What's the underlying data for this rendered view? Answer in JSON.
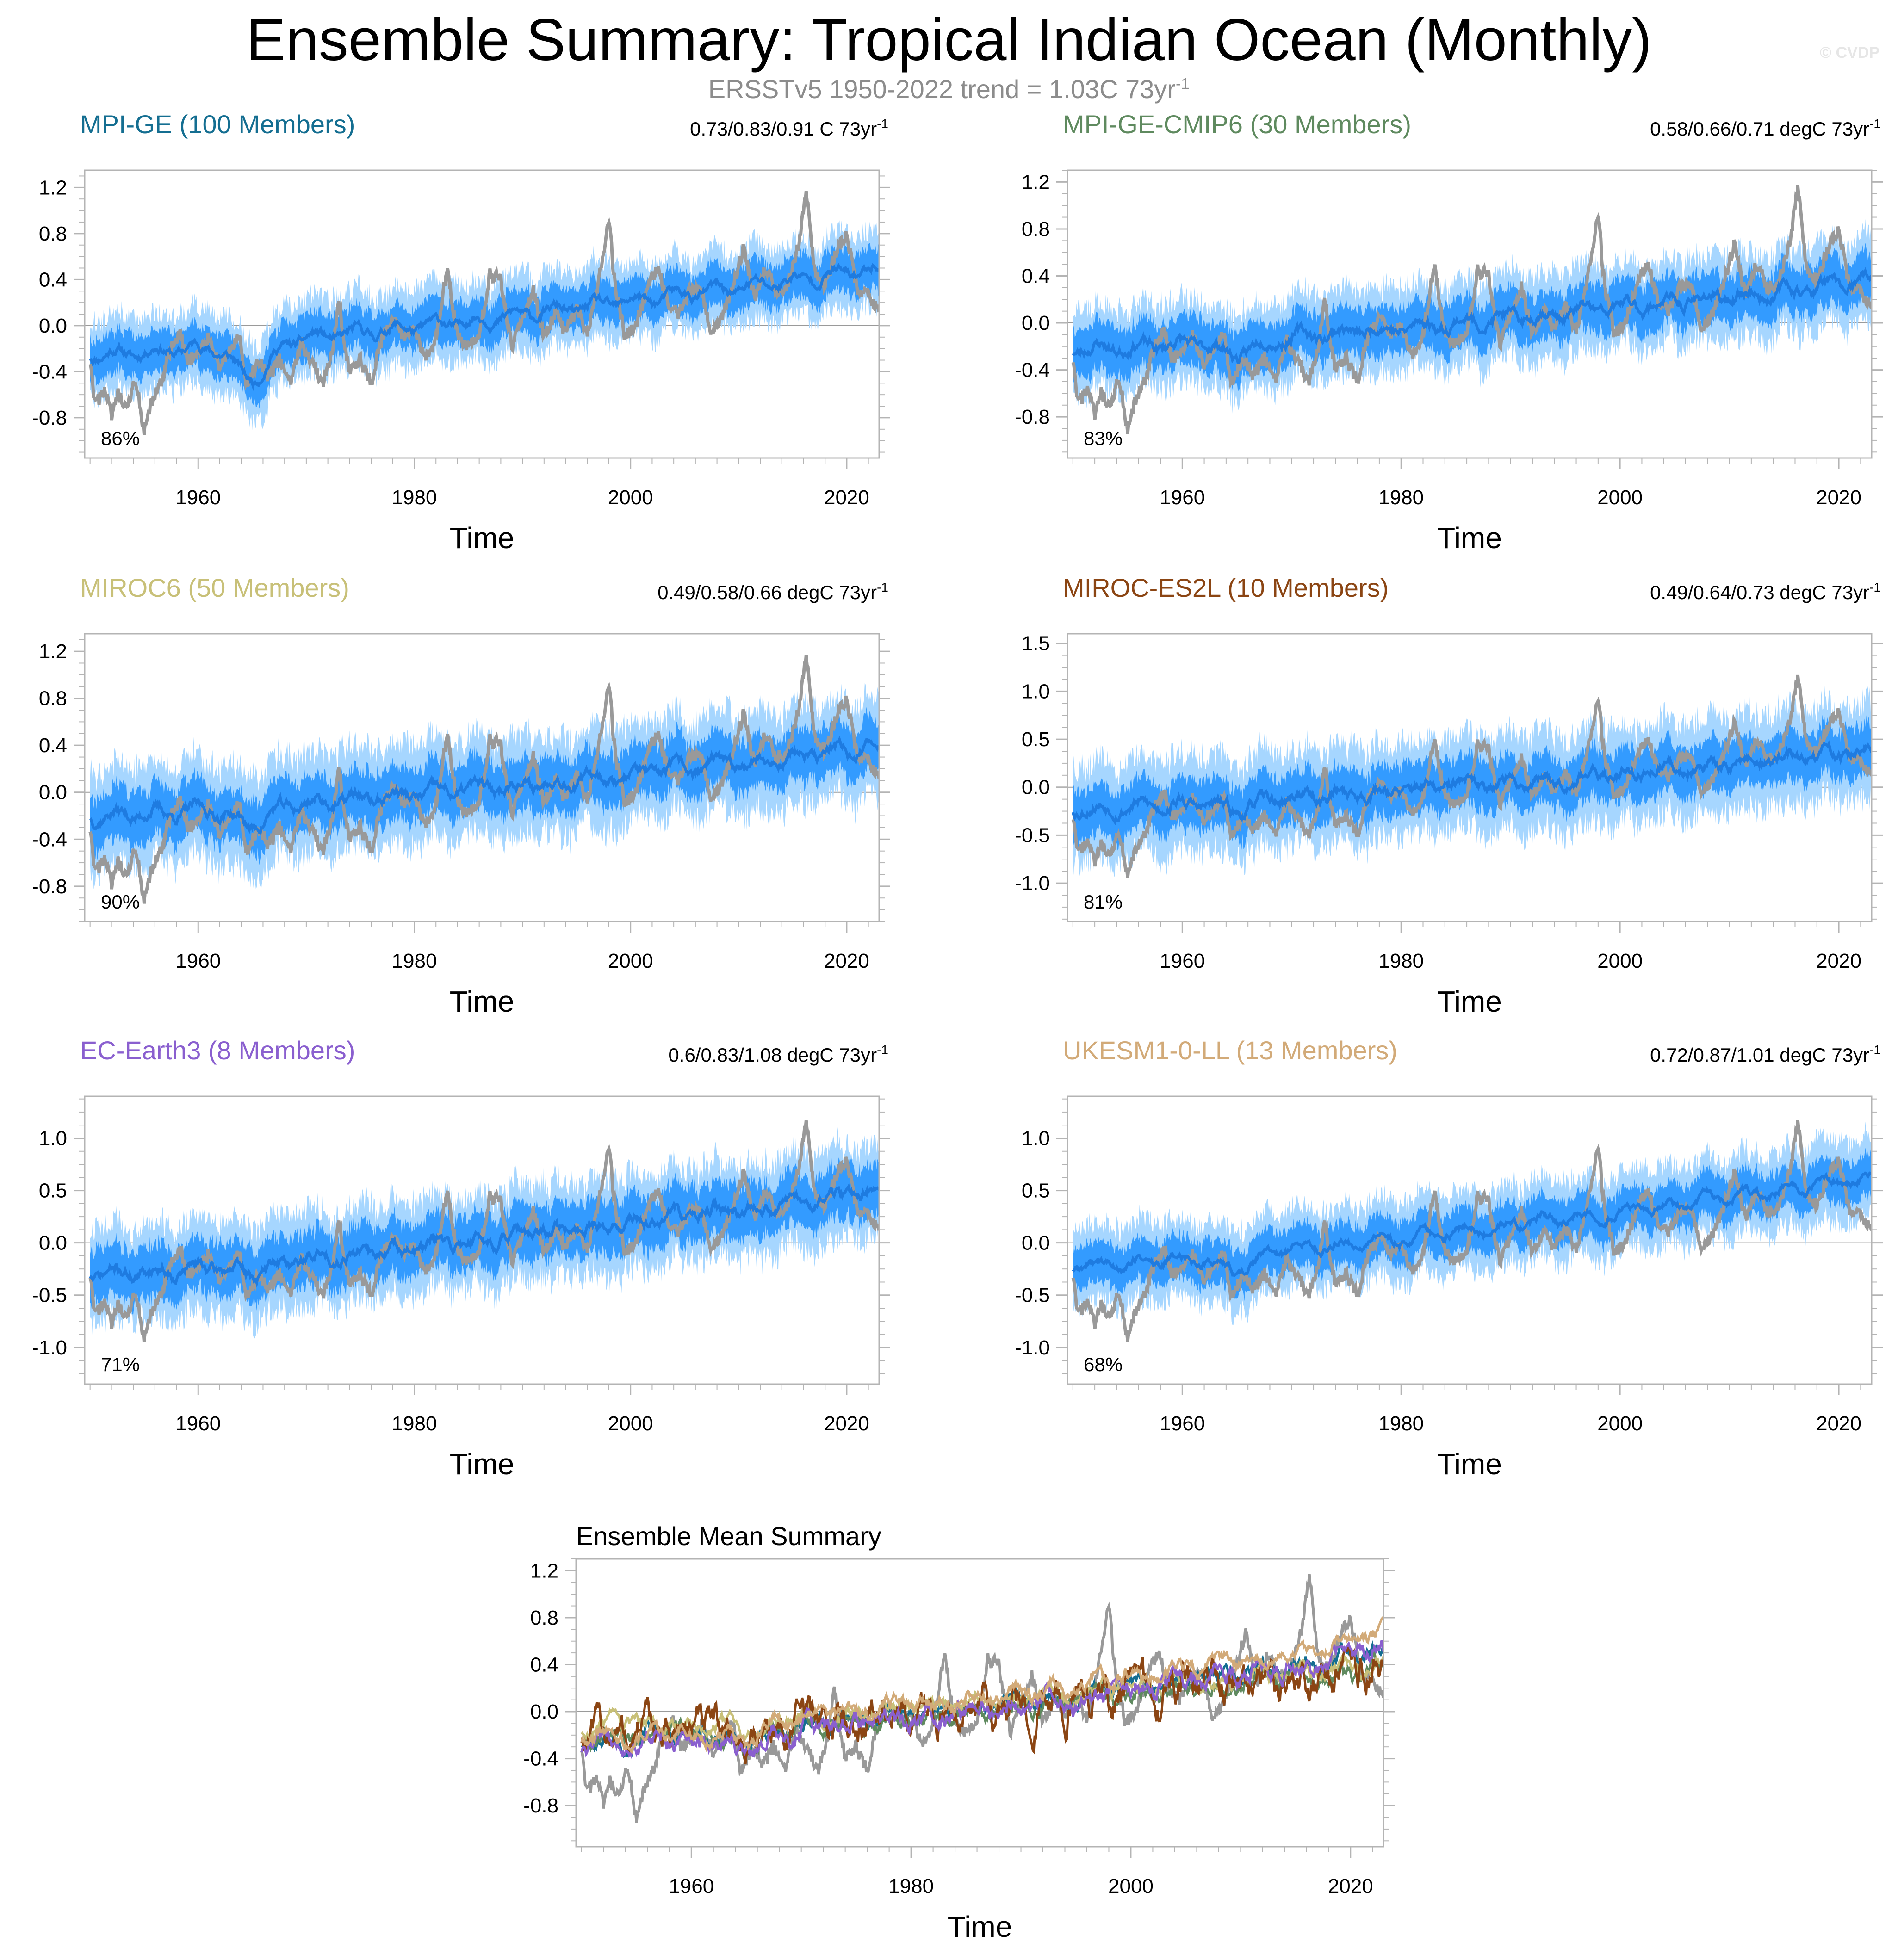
{
  "figure": {
    "title": "Ensemble Summary: Tropical Indian Ocean (Monthly)",
    "subtitle_text": "ERSSTv5 1950-2022 trend = 1.03C 73yr",
    "subtitle_sup": "-1",
    "watermark": "© CVDP"
  },
  "colors": {
    "observations": "#999999",
    "ensemble_band_outer": "#a6d6ff",
    "ensemble_band_inner": "#1e90ff",
    "ensemble_mean": "#1e7be0",
    "zero_line": "#9a9a9a",
    "MPI-GE": "#146e91",
    "MPI-GE-CMIP6": "#5f8a5f",
    "MIROC6": "#c8c078",
    "MIROC-ES2L": "#8b4513",
    "EC-Earth3": "#8a5fcf",
    "UKESM1-0-LL": "#d2aa78"
  },
  "chart_data": [
    {
      "type": "line",
      "title": "MPI-GE (100 Members)",
      "title_color": "#146e91",
      "trend_text": "0.73/0.83/0.91 C 73yr",
      "trend_sup": "-1",
      "percent_label": "86%",
      "xlabel": "Time",
      "ylabel": "",
      "xlim": [
        1949.5,
        2023
      ],
      "ylim": [
        -1.15,
        1.35
      ],
      "xticks": [
        1960,
        1980,
        2000,
        2020
      ],
      "yticks": [
        -0.8,
        -0.4,
        0.0,
        0.4,
        0.8,
        1.2
      ],
      "ytick_labels": [
        "-0.8",
        "-0.4",
        "0.0",
        "0.4",
        "0.8",
        "1.2"
      ],
      "mean_trend": [
        -0.25,
        0.5
      ],
      "band_inner": 0.18,
      "band_outer": 0.33,
      "noise": 0.1,
      "dip_1965": -0.3,
      "seed": 11
    },
    {
      "type": "line",
      "title": "MPI-GE-CMIP6 (30 Members)",
      "title_color": "#5f8a5f",
      "trend_text": "0.58/0.66/0.71 degC 73yr",
      "trend_sup": "-1",
      "percent_label": "83%",
      "xlabel": "Time",
      "ylabel": "",
      "xlim": [
        1949.5,
        2023
      ],
      "ylim": [
        -1.15,
        1.3
      ],
      "xticks": [
        1960,
        1980,
        2000,
        2020
      ],
      "yticks": [
        -0.8,
        -0.4,
        0.0,
        0.4,
        0.8,
        1.2
      ],
      "ytick_labels": [
        "-0.8",
        "-0.4",
        "0.0",
        "0.4",
        "0.8",
        "1.2"
      ],
      "mean_trend": [
        -0.22,
        0.35
      ],
      "band_inner": 0.2,
      "band_outer": 0.36,
      "noise": 0.12,
      "dip_1965": -0.12,
      "seed": 23
    },
    {
      "type": "line",
      "title": "MIROC6 (50 Members)",
      "title_color": "#c8c078",
      "trend_text": "0.49/0.58/0.66 degC 73yr",
      "trend_sup": "-1",
      "percent_label": "90%",
      "xlabel": "Time",
      "ylabel": "",
      "xlim": [
        1949.5,
        2023
      ],
      "ylim": [
        -1.1,
        1.35
      ],
      "xticks": [
        1960,
        1980,
        2000,
        2020
      ],
      "yticks": [
        -0.8,
        -0.4,
        0.0,
        0.4,
        0.8,
        1.2
      ],
      "ytick_labels": [
        "-0.8",
        "-0.4",
        "0.0",
        "0.4",
        "0.8",
        "1.2"
      ],
      "mean_trend": [
        -0.2,
        0.38
      ],
      "band_inner": 0.22,
      "band_outer": 0.42,
      "noise": 0.12,
      "dip_1965": -0.15,
      "seed": 37
    },
    {
      "type": "line",
      "title": "MIROC-ES2L (10 Members)",
      "title_color": "#8b4513",
      "trend_text": "0.49/0.64/0.73 degC 73yr",
      "trend_sup": "-1",
      "percent_label": "81%",
      "xlabel": "Time",
      "ylabel": "",
      "xlim": [
        1949.5,
        2023
      ],
      "ylim": [
        -1.4,
        1.6
      ],
      "xticks": [
        1960,
        1980,
        2000,
        2020
      ],
      "yticks": [
        -1.0,
        -0.5,
        0.0,
        0.5,
        1.0,
        1.5
      ],
      "ytick_labels": [
        "-1.0",
        "-0.5",
        "0.0",
        "0.5",
        "1.0",
        "1.5"
      ],
      "mean_trend": [
        -0.22,
        0.38
      ],
      "band_inner": 0.25,
      "band_outer": 0.5,
      "noise": 0.15,
      "dip_1965": -0.1,
      "seed": 53
    },
    {
      "type": "line",
      "title": "EC-Earth3 (8 Members)",
      "title_color": "#8a5fcf",
      "trend_text": "0.6/0.83/1.08 degC 73yr",
      "trend_sup": "-1",
      "percent_label": "71%",
      "xlabel": "Time",
      "ylabel": "",
      "xlim": [
        1949.5,
        2023
      ],
      "ylim": [
        -1.35,
        1.4
      ],
      "xticks": [
        1960,
        1980,
        2000,
        2020
      ],
      "yticks": [
        -1.0,
        -0.5,
        0.0,
        0.5,
        1.0
      ],
      "ytick_labels": [
        "-1.0",
        "-0.5",
        "0.0",
        "0.5",
        "1.0"
      ],
      "mean_trend": [
        -0.3,
        0.5
      ],
      "band_inner": 0.25,
      "band_outer": 0.45,
      "noise": 0.14,
      "dip_1965": -0.1,
      "seed": 71
    },
    {
      "type": "line",
      "title": "UKESM1-0-LL (13 Members)",
      "title_color": "#d2aa78",
      "trend_text": "0.72/0.87/1.01 degC 73yr",
      "trend_sup": "-1",
      "percent_label": "68%",
      "xlabel": "Time",
      "ylabel": "",
      "xlim": [
        1949.5,
        2023
      ],
      "ylim": [
        -1.35,
        1.4
      ],
      "xticks": [
        1960,
        1980,
        2000,
        2020
      ],
      "yticks": [
        -1.0,
        -0.5,
        0.0,
        0.5,
        1.0
      ],
      "ytick_labels": [
        "-1.0",
        "-0.5",
        "0.0",
        "0.5",
        "1.0"
      ],
      "mean_trend": [
        -0.22,
        0.62
      ],
      "band_inner": 0.2,
      "band_outer": 0.38,
      "noise": 0.1,
      "dip_1965": -0.15,
      "seed": 89
    },
    {
      "type": "line",
      "title": "Ensemble Mean Summary",
      "title_color": "#000000",
      "xlabel": "Time",
      "ylabel": "",
      "xlim": [
        1949.5,
        2023
      ],
      "ylim": [
        -1.15,
        1.3
      ],
      "xticks": [
        1960,
        1980,
        2000,
        2020
      ],
      "yticks": [
        -0.8,
        -0.4,
        0.0,
        0.4,
        0.8,
        1.2
      ],
      "ytick_labels": [
        "-0.8",
        "-0.4",
        "0.0",
        "0.4",
        "0.8",
        "1.2"
      ],
      "series": [
        {
          "name": "MPI-GE",
          "color": "#146e91",
          "trend": [
            -0.25,
            0.5
          ],
          "noise": 0.08,
          "seed": 101
        },
        {
          "name": "MPI-GE-CMIP6",
          "color": "#5f8a5f",
          "trend": [
            -0.22,
            0.35
          ],
          "noise": 0.08,
          "seed": 102
        },
        {
          "name": "MIROC6",
          "color": "#c8c078",
          "trend": [
            -0.15,
            0.4
          ],
          "noise": 0.08,
          "seed": 103
        },
        {
          "name": "MIROC-ES2L",
          "color": "#8b4513",
          "trend": [
            -0.2,
            0.38
          ],
          "noise": 0.2,
          "seed": 104
        },
        {
          "name": "EC-Earth3",
          "color": "#8a5fcf",
          "trend": [
            -0.3,
            0.5
          ],
          "noise": 0.1,
          "seed": 105
        },
        {
          "name": "UKESM1-0-LL",
          "color": "#d2aa78",
          "trend": [
            -0.22,
            0.62
          ],
          "noise": 0.08,
          "seed": 106
        }
      ]
    }
  ],
  "observations": {
    "name": "ERSSTv5",
    "start_year": 1950,
    "end_year": 2023,
    "key_points": [
      [
        1950.0,
        -0.35
      ],
      [
        1950.5,
        -0.7
      ],
      [
        1951.3,
        -0.55
      ],
      [
        1952.0,
        -0.8
      ],
      [
        1952.6,
        -0.6
      ],
      [
        1953.4,
        -0.75
      ],
      [
        1954.2,
        -0.45
      ],
      [
        1955.0,
        -0.95
      ],
      [
        1955.6,
        -0.7
      ],
      [
        1956.5,
        -0.5
      ],
      [
        1957.5,
        -0.2
      ],
      [
        1958.3,
        -0.05
      ],
      [
        1959.0,
        -0.3
      ],
      [
        1960.0,
        -0.25
      ],
      [
        1961.0,
        -0.1
      ],
      [
        1962.0,
        -0.35
      ],
      [
        1963.0,
        -0.2
      ],
      [
        1963.8,
        -0.1
      ],
      [
        1964.5,
        -0.55
      ],
      [
        1965.5,
        -0.3
      ],
      [
        1966.5,
        -0.45
      ],
      [
        1967.5,
        -0.3
      ],
      [
        1968.5,
        -0.5
      ],
      [
        1969.5,
        -0.15
      ],
      [
        1970.5,
        -0.3
      ],
      [
        1971.5,
        -0.5
      ],
      [
        1972.5,
        -0.2
      ],
      [
        1973.0,
        0.2
      ],
      [
        1974.0,
        -0.4
      ],
      [
        1975.0,
        -0.3
      ],
      [
        1976.0,
        -0.5
      ],
      [
        1977.0,
        -0.1
      ],
      [
        1978.0,
        0.05
      ],
      [
        1979.0,
        -0.1
      ],
      [
        1980.0,
        0.0
      ],
      [
        1981.0,
        -0.3
      ],
      [
        1982.0,
        -0.1
      ],
      [
        1983.0,
        0.5
      ],
      [
        1984.0,
        -0.1
      ],
      [
        1985.0,
        -0.2
      ],
      [
        1986.0,
        -0.1
      ],
      [
        1987.0,
        0.45
      ],
      [
        1988.0,
        0.4
      ],
      [
        1989.0,
        -0.2
      ],
      [
        1990.0,
        0.1
      ],
      [
        1991.0,
        0.3
      ],
      [
        1992.0,
        -0.1
      ],
      [
        1993.0,
        0.1
      ],
      [
        1994.0,
        -0.05
      ],
      [
        1995.0,
        0.15
      ],
      [
        1996.0,
        -0.05
      ],
      [
        1997.0,
        0.35
      ],
      [
        1998.0,
        0.95
      ],
      [
        1998.6,
        0.3
      ],
      [
        1999.5,
        -0.1
      ],
      [
        2000.5,
        0.0
      ],
      [
        2001.5,
        0.3
      ],
      [
        2002.5,
        0.5
      ],
      [
        2003.5,
        0.2
      ],
      [
        2004.5,
        0.1
      ],
      [
        2005.5,
        0.3
      ],
      [
        2006.5,
        0.3
      ],
      [
        2007.5,
        -0.05
      ],
      [
        2008.5,
        0.1
      ],
      [
        2009.5,
        0.35
      ],
      [
        2010.5,
        0.7
      ],
      [
        2011.5,
        0.2
      ],
      [
        2012.5,
        0.5
      ],
      [
        2013.5,
        0.3
      ],
      [
        2014.5,
        0.35
      ],
      [
        2015.5,
        0.7
      ],
      [
        2016.3,
        1.15
      ],
      [
        2017.0,
        0.5
      ],
      [
        2018.0,
        0.35
      ],
      [
        2019.0,
        0.65
      ],
      [
        2020.0,
        0.8
      ],
      [
        2021.0,
        0.3
      ],
      [
        2022.0,
        0.25
      ],
      [
        2023.0,
        0.15
      ]
    ]
  }
}
